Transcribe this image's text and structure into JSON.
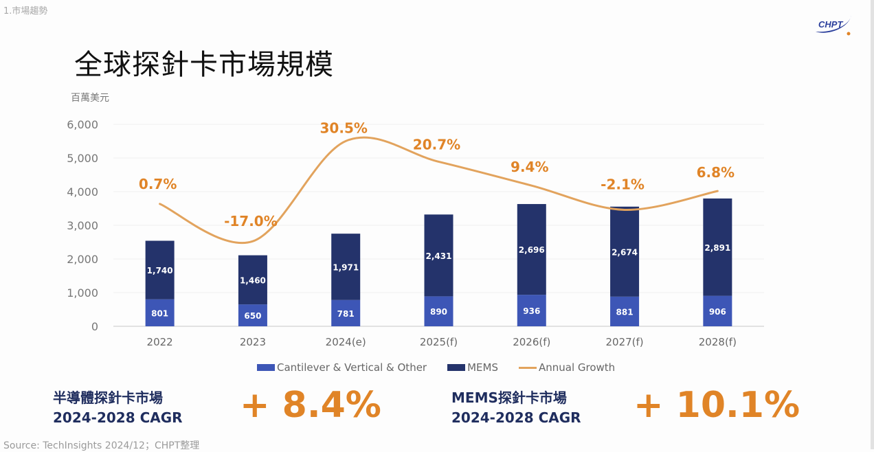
{
  "section_label": "1.市場趨勢",
  "logo_text": "CHPT",
  "title": "全球探針卡市場規模",
  "colors": {
    "cantilever": "#3d56b6",
    "mems": "#24336b",
    "growth": "#e2a35d",
    "growth_label": "#e08427"
  },
  "chart_data": {
    "type": "bar",
    "stacked": true,
    "ylabel": "百萬美元",
    "ylim": [
      0,
      6000
    ],
    "yticks": [
      "0",
      "1,000",
      "2,000",
      "3,000",
      "4,000",
      "5,000",
      "6,000"
    ],
    "ytick_values": [
      0,
      1000,
      2000,
      3000,
      4000,
      5000,
      6000
    ],
    "grid": true,
    "categories": [
      "2022",
      "2023",
      "2024(e)",
      "2025(f)",
      "2026(f)",
      "2027(f)",
      "2028(f)"
    ],
    "series": [
      {
        "name": "Cantilever & Vertical & Other",
        "type": "bar",
        "values": [
          801,
          650,
          781,
          890,
          936,
          881,
          906
        ],
        "labels": [
          "801",
          "650",
          "781",
          "890",
          "936",
          "881",
          "906"
        ]
      },
      {
        "name": "MEMS",
        "type": "bar",
        "values": [
          1740,
          1460,
          1971,
          2431,
          2696,
          2674,
          2891
        ],
        "labels": [
          "1,740",
          "1,460",
          "1,971",
          "2,431",
          "2,696",
          "2,674",
          "2,891"
        ]
      },
      {
        "name": "Annual Growth",
        "type": "line",
        "axis": "secondary",
        "unit": "%",
        "values": [
          0.7,
          -17.0,
          30.5,
          20.7,
          9.4,
          -2.1,
          6.8
        ],
        "labels": [
          "0.7%",
          "-17.0%",
          "30.5%",
          "20.7%",
          "9.4%",
          "-2.1%",
          "6.8%"
        ]
      }
    ],
    "legend_position": "bottom"
  },
  "cagr": [
    {
      "line1": "半導體探針卡市場",
      "line2": "2024-2028 CAGR",
      "value": "+ 8.4%"
    },
    {
      "line1": "MEMS探針卡市場",
      "line2": "2024-2028 CAGR",
      "value": "+ 10.1%"
    }
  ],
  "source": "Source: TechInsights 2024/12；CHPT整理"
}
